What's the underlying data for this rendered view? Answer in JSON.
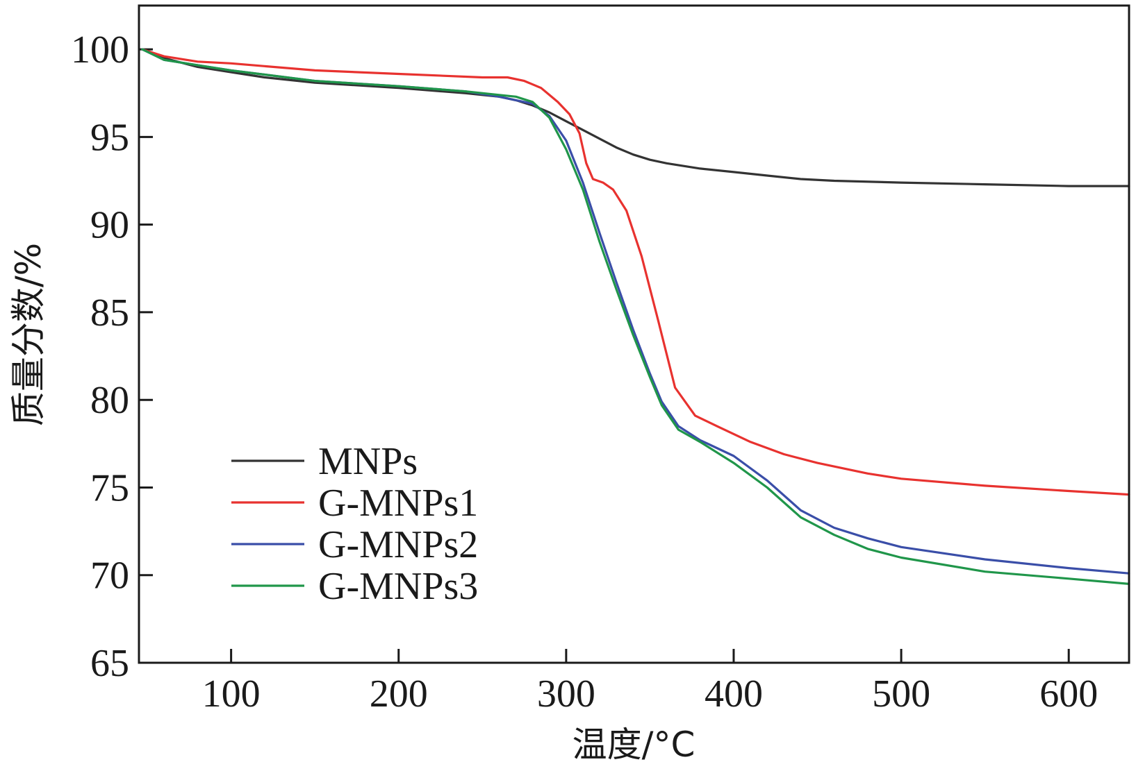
{
  "chart_data": {
    "type": "line",
    "title": "",
    "xlabel": "温度/°C",
    "ylabel": "质量分数/%",
    "xlim": [
      45,
      636
    ],
    "ylim": [
      65,
      102.5
    ],
    "xticks": [
      100,
      200,
      300,
      400,
      500,
      600
    ],
    "yticks": [
      65,
      70,
      75,
      80,
      85,
      90,
      95,
      100
    ],
    "grid": false,
    "legend_position": "bottom-left",
    "series": [
      {
        "name": "MNPs",
        "color": "#333333",
        "x": [
          47,
          60,
          80,
          100,
          120,
          150,
          200,
          240,
          260,
          270,
          280,
          290,
          300,
          310,
          320,
          330,
          340,
          350,
          360,
          380,
          400,
          420,
          440,
          460,
          500,
          550,
          600,
          636
        ],
        "y": [
          100.0,
          99.5,
          99.0,
          98.7,
          98.4,
          98.1,
          97.8,
          97.5,
          97.3,
          97.1,
          96.8,
          96.4,
          95.9,
          95.4,
          94.9,
          94.4,
          94.0,
          93.7,
          93.5,
          93.2,
          93.0,
          92.8,
          92.6,
          92.5,
          92.4,
          92.3,
          92.2,
          92.2
        ]
      },
      {
        "name": "G-MNPs1",
        "color": "#e8322f",
        "x": [
          47,
          60,
          80,
          100,
          150,
          200,
          250,
          265,
          275,
          285,
          295,
          302,
          308,
          312,
          316,
          322,
          328,
          336,
          345,
          355,
          365,
          377,
          390,
          410,
          430,
          450,
          480,
          500,
          550,
          600,
          636
        ],
        "y": [
          100.0,
          99.6,
          99.3,
          99.2,
          98.8,
          98.6,
          98.4,
          98.4,
          98.2,
          97.8,
          97.0,
          96.3,
          95.2,
          93.5,
          92.6,
          92.4,
          92.0,
          90.8,
          88.2,
          84.5,
          80.7,
          79.1,
          78.5,
          77.6,
          76.9,
          76.4,
          75.8,
          75.5,
          75.1,
          74.8,
          74.6
        ]
      },
      {
        "name": "G-MNPs2",
        "color": "#3a4ea8",
        "x": [
          47,
          60,
          80,
          100,
          150,
          200,
          240,
          260,
          270,
          280,
          290,
          300,
          310,
          320,
          330,
          340,
          350,
          357,
          367,
          380,
          400,
          420,
          440,
          460,
          480,
          500,
          550,
          600,
          636
        ],
        "y": [
          100.0,
          99.4,
          99.1,
          98.8,
          98.2,
          97.9,
          97.6,
          97.3,
          97.1,
          96.9,
          96.2,
          94.8,
          92.4,
          89.5,
          86.7,
          84.0,
          81.5,
          79.9,
          78.5,
          77.7,
          76.8,
          75.4,
          73.7,
          72.7,
          72.1,
          71.6,
          70.9,
          70.4,
          70.1
        ]
      },
      {
        "name": "G-MNPs3",
        "color": "#20964a",
        "x": [
          47,
          60,
          80,
          100,
          150,
          200,
          240,
          260,
          270,
          280,
          290,
          300,
          310,
          320,
          330,
          340,
          350,
          357,
          367,
          380,
          400,
          420,
          440,
          460,
          480,
          500,
          550,
          600,
          636
        ],
        "y": [
          100.0,
          99.4,
          99.1,
          98.8,
          98.2,
          97.9,
          97.6,
          97.4,
          97.3,
          97.0,
          96.1,
          94.3,
          92.0,
          89.0,
          86.3,
          83.7,
          81.3,
          79.7,
          78.3,
          77.6,
          76.4,
          75.0,
          73.3,
          72.3,
          71.5,
          71.0,
          70.2,
          69.8,
          69.5
        ]
      }
    ]
  }
}
